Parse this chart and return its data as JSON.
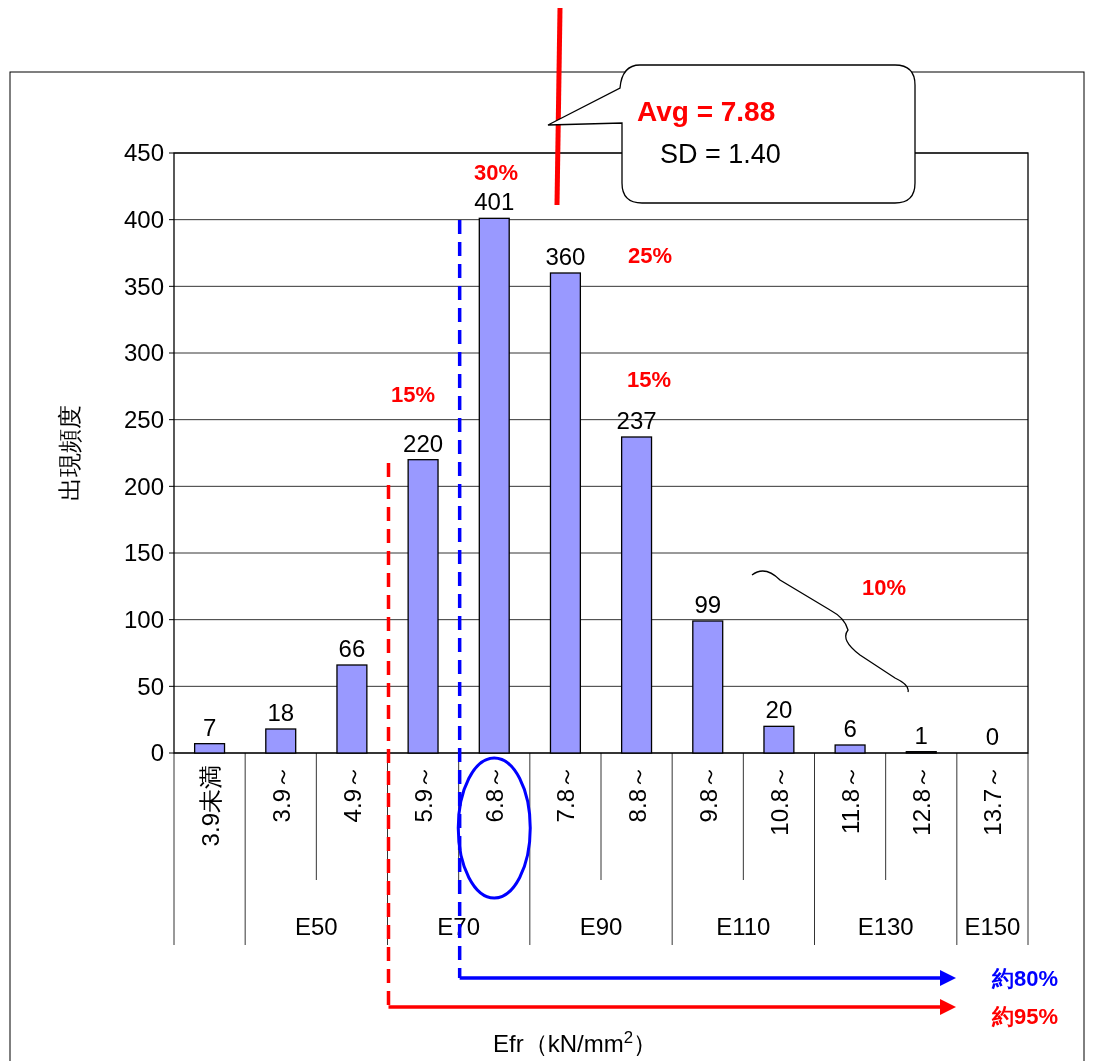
{
  "chart_data": {
    "type": "bar",
    "categories": [
      "3.9未満",
      "3.9～",
      "4.9～",
      "5.9～",
      "6.8～",
      "7.8～",
      "8.8～",
      "9.8～",
      "10.8～",
      "11.8～",
      "12.8～",
      "13.7～"
    ],
    "values": [
      7,
      18,
      66,
      220,
      401,
      360,
      237,
      99,
      20,
      6,
      1,
      0
    ],
    "color": "#9999ff",
    "ylim": [
      0,
      450
    ],
    "yticks": [
      0,
      50,
      100,
      150,
      200,
      250,
      300,
      350,
      400,
      450
    ],
    "grid": "y",
    "data_labels": true,
    "ylabel": "出現頻度",
    "annotations": [
      "E50",
      "E70",
      "E90",
      "E110",
      "E130",
      "E150",
      "Avg = 7.88",
      "SD = 1.40",
      "30%",
      "25%",
      "15%",
      "15%",
      "10%",
      "Efr（kN/mm$^{2}$）"
    ],
    "ref_lines": [
      {
        "axis": "x",
        "value": "6.8～",
        "label": "約80%",
        "color": "#0000ff",
        "line_style": "dashed"
      },
      {
        "axis": "x",
        "value": "5.9～",
        "label": "約95%",
        "color": "#ff0000",
        "line_style": "dashed"
      }
    ]
  }
}
